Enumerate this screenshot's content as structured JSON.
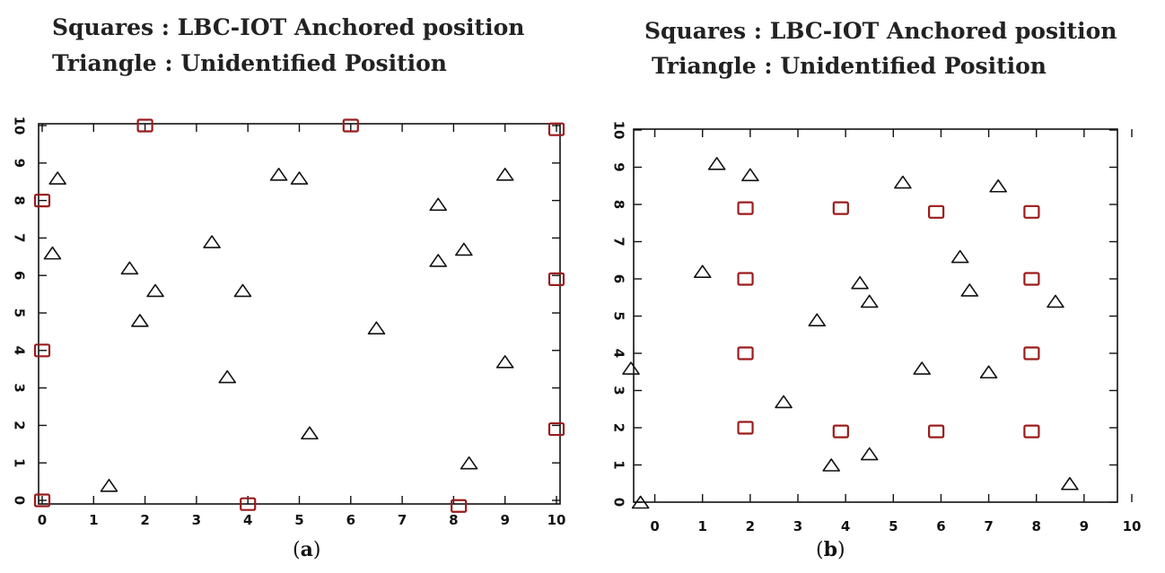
{
  "chart_data": [
    {
      "type": "scatter",
      "panel_label": "a",
      "legend": [
        "Squares :  LBC-IOT Anchored position",
        "Triangle : Unidentified Position"
      ],
      "xlim": [
        0,
        10
      ],
      "ylim": [
        0,
        10
      ],
      "x_ticks": [
        0,
        1,
        2,
        3,
        4,
        5,
        6,
        7,
        8,
        9,
        10
      ],
      "y_ticks": [
        0,
        1,
        2,
        3,
        4,
        5,
        6,
        7,
        8,
        9,
        10
      ],
      "series": [
        {
          "marker": "square",
          "color": "#9b1b1b",
          "points": [
            [
              0,
              0
            ],
            [
              0,
              4
            ],
            [
              0,
              8
            ],
            [
              2,
              10
            ],
            [
              6,
              10
            ],
            [
              10,
              9.9
            ],
            [
              10,
              5.9
            ],
            [
              10,
              1.9
            ],
            [
              4,
              -0.1
            ],
            [
              8.1,
              -0.15
            ]
          ]
        },
        {
          "marker": "triangle",
          "color": "#111111",
          "points": [
            [
              0.3,
              8.6
            ],
            [
              0.2,
              6.6
            ],
            [
              1.7,
              6.2
            ],
            [
              2.2,
              5.6
            ],
            [
              1.9,
              4.8
            ],
            [
              1.3,
              0.4
            ],
            [
              3.3,
              6.9
            ],
            [
              3.9,
              5.6
            ],
            [
              3.6,
              3.3
            ],
            [
              4.6,
              8.7
            ],
            [
              5.0,
              8.6
            ],
            [
              5.2,
              1.8
            ],
            [
              6.5,
              4.6
            ],
            [
              7.7,
              7.9
            ],
            [
              7.7,
              6.4
            ],
            [
              8.2,
              6.7
            ],
            [
              8.3,
              1.0
            ],
            [
              9.0,
              8.7
            ],
            [
              9.0,
              3.7
            ]
          ]
        }
      ]
    },
    {
      "type": "scatter",
      "panel_label": "b",
      "legend": [
        "Squares : LBC-IOT Anchored position",
        "Triangle : Unidentified Position"
      ],
      "xlim": [
        -0.5,
        10
      ],
      "ylim": [
        0,
        10
      ],
      "x_ticks": [
        0,
        1,
        2,
        3,
        4,
        5,
        6,
        7,
        8,
        9,
        10
      ],
      "y_ticks": [
        0,
        1,
        2,
        3,
        4,
        5,
        6,
        7,
        8,
        9,
        10
      ],
      "series": [
        {
          "marker": "square",
          "color": "#9b1b1b",
          "points": [
            [
              1.9,
              7.9
            ],
            [
              3.9,
              7.9
            ],
            [
              5.9,
              7.8
            ],
            [
              7.9,
              7.8
            ],
            [
              1.9,
              6.0
            ],
            [
              7.9,
              6.0
            ],
            [
              1.9,
              4.0
            ],
            [
              7.9,
              4.0
            ],
            [
              1.9,
              2.0
            ],
            [
              3.9,
              1.9
            ],
            [
              5.9,
              1.9
            ],
            [
              7.9,
              1.9
            ]
          ]
        },
        {
          "marker": "triangle",
          "color": "#111111",
          "points": [
            [
              1.3,
              9.1
            ],
            [
              2.0,
              8.8
            ],
            [
              5.2,
              8.6
            ],
            [
              7.2,
              8.5
            ],
            [
              1.0,
              6.2
            ],
            [
              6.4,
              6.6
            ],
            [
              4.3,
              5.9
            ],
            [
              4.5,
              5.4
            ],
            [
              6.6,
              5.7
            ],
            [
              8.4,
              5.4
            ],
            [
              3.4,
              4.9
            ],
            [
              -0.5,
              3.6
            ],
            [
              5.6,
              3.6
            ],
            [
              7.0,
              3.5
            ],
            [
              2.7,
              2.7
            ],
            [
              3.7,
              1.0
            ],
            [
              4.5,
              1.3
            ],
            [
              8.7,
              0.5
            ],
            [
              -0.3,
              0.0
            ]
          ]
        }
      ]
    }
  ]
}
